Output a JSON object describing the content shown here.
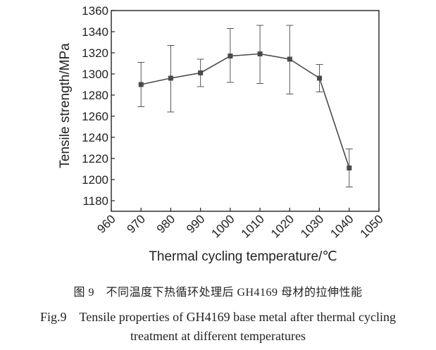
{
  "chart_data": {
    "type": "line",
    "xlabel": "Thermal cycling temperature/℃",
    "ylabel": "Tensile strength/MPa",
    "xlim": [
      960,
      1050
    ],
    "ylim": [
      1170,
      1360
    ],
    "x_ticks": [
      960,
      970,
      980,
      990,
      1000,
      1010,
      1020,
      1030,
      1040,
      1050
    ],
    "y_ticks": [
      1180,
      1200,
      1220,
      1240,
      1260,
      1280,
      1300,
      1320,
      1340,
      1360
    ],
    "grid": false,
    "series": [
      {
        "x": [
          970,
          980,
          990,
          1000,
          1010,
          1020,
          1030,
          1040
        ],
        "y": [
          1290,
          1296,
          1301,
          1317,
          1319,
          1314,
          1296,
          1211
        ],
        "err_high": [
          1311,
          1327,
          1314,
          1343,
          1346,
          1346,
          1309,
          1229
        ],
        "err_low": [
          1269,
          1264,
          1288,
          1292,
          1291,
          1281,
          1283,
          1193
        ],
        "color": "#4a4a4a",
        "marker": "square"
      }
    ]
  },
  "caption": {
    "cn": "图 9　不同温度下热循环处理后 GH4169 母材的拉伸性能",
    "en_line1": "Fig.9　Tensile properties of GH4169 base metal after thermal cycling",
    "en_line2": "treatment at different temperatures"
  }
}
